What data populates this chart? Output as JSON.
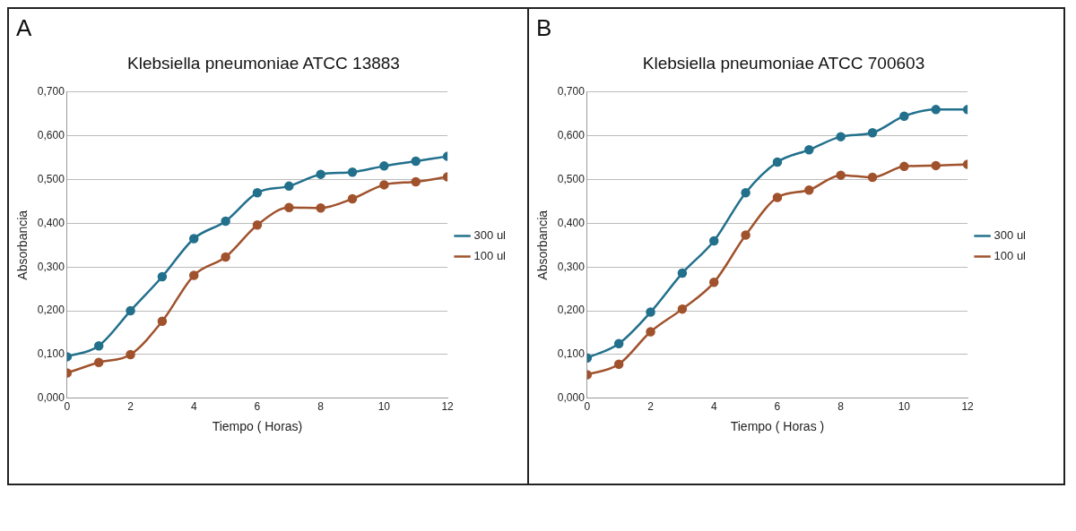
{
  "chart_data": [
    {
      "type": "line",
      "title": "Klebsiella pneumoniae ATCC 13883",
      "xlabel": "Tiempo ( Horas)",
      "ylabel": "Absorbancia",
      "annotations": [
        "A"
      ],
      "x": [
        0,
        1,
        2,
        3,
        4,
        5,
        6,
        7,
        8,
        9,
        10,
        11,
        12
      ],
      "series": [
        {
          "name": "300 ul",
          "color": "#22708c",
          "values": [
            0.095,
            0.12,
            0.2,
            0.278,
            0.365,
            0.405,
            0.47,
            0.485,
            0.512,
            0.517,
            0.531,
            0.542,
            0.553
          ]
        },
        {
          "name": "100 ul",
          "color": "#a0522d",
          "values": [
            0.058,
            0.082,
            0.1,
            0.176,
            0.281,
            0.323,
            0.396,
            0.436,
            0.435,
            0.456,
            0.488,
            0.495,
            0.506
          ]
        }
      ],
      "xlim": [
        0,
        12
      ],
      "xticks": [
        0,
        2,
        4,
        6,
        8,
        10,
        12
      ],
      "ylim": [
        0,
        0.7
      ],
      "yticks": [
        {
          "value": 0,
          "label": "0,000"
        },
        {
          "value": 0.1,
          "label": "0,100"
        },
        {
          "value": 0.2,
          "label": "0,200"
        },
        {
          "value": 0.3,
          "label": "0,300"
        },
        {
          "value": 0.4,
          "label": "0,400"
        },
        {
          "value": 0.5,
          "label": "0,500"
        },
        {
          "value": 0.6,
          "label": "0,600"
        },
        {
          "value": 0.7,
          "label": "0,700"
        }
      ],
      "grid": "y",
      "legend": "right",
      "marker": "circle",
      "line_style": "solid"
    },
    {
      "type": "line",
      "title": "Klebsiella pneumoniae ATCC 700603",
      "xlabel": "Tiempo ( Horas )",
      "ylabel": "Absorbancia",
      "annotations": [
        "B"
      ],
      "x": [
        0,
        1,
        2,
        3,
        4,
        5,
        6,
        7,
        8,
        9,
        10,
        11,
        12
      ],
      "series": [
        {
          "name": "300 ul",
          "color": "#22708c",
          "values": [
            0.092,
            0.125,
            0.197,
            0.286,
            0.36,
            0.47,
            0.54,
            0.568,
            0.598,
            0.607,
            0.645,
            0.66,
            0.66
          ]
        },
        {
          "name": "100 ul",
          "color": "#a0522d",
          "values": [
            0.054,
            0.078,
            0.152,
            0.204,
            0.265,
            0.373,
            0.459,
            0.476,
            0.51,
            0.505,
            0.53,
            0.532,
            0.535
          ]
        }
      ],
      "xlim": [
        0,
        12
      ],
      "xticks": [
        0,
        2,
        4,
        6,
        8,
        10,
        12
      ],
      "ylim": [
        0,
        0.7
      ],
      "yticks": [
        {
          "value": 0,
          "label": "0,000"
        },
        {
          "value": 0.1,
          "label": "0,100"
        },
        {
          "value": 0.2,
          "label": "0,200"
        },
        {
          "value": 0.3,
          "label": "0,300"
        },
        {
          "value": 0.4,
          "label": "0,400"
        },
        {
          "value": 0.5,
          "label": "0,500"
        },
        {
          "value": 0.6,
          "label": "0,600"
        },
        {
          "value": 0.7,
          "label": "0,700"
        }
      ],
      "grid": "y",
      "legend": "right",
      "marker": "circle",
      "line_style": "solid"
    }
  ]
}
